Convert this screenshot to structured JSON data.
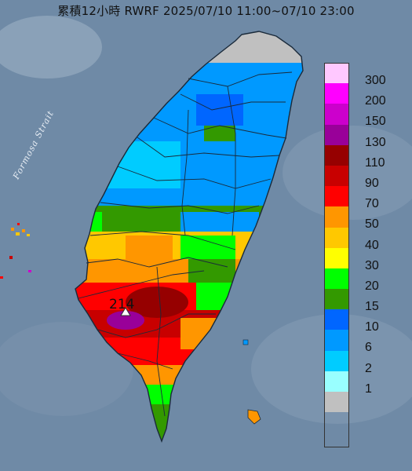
{
  "title": "累積12小時 RWRF 2025/07/10 11:00~07/10 23:00",
  "strait_label": "Formosa Strait",
  "max_value_label": "214",
  "legend": [
    {
      "label": "300",
      "color": "#ffc8ff"
    },
    {
      "label": "200",
      "color": "#ff00ff"
    },
    {
      "label": "150",
      "color": "#cc00cc"
    },
    {
      "label": "130",
      "color": "#990099"
    },
    {
      "label": "110",
      "color": "#960000"
    },
    {
      "label": "90",
      "color": "#c80000"
    },
    {
      "label": "70",
      "color": "#ff0000"
    },
    {
      "label": "50",
      "color": "#ff9600"
    },
    {
      "label": "40",
      "color": "#ffc800"
    },
    {
      "label": "30",
      "color": "#ffff00"
    },
    {
      "label": "20",
      "color": "#00ff00"
    },
    {
      "label": "15",
      "color": "#339900"
    },
    {
      "label": "10",
      "color": "#0066ff"
    },
    {
      "label": "6",
      "color": "#0099ff"
    },
    {
      "label": "2",
      "color": "#00ccff"
    },
    {
      "label": "1",
      "color": "#99ffff"
    },
    {
      "label": "",
      "color": "#c0c0c0"
    }
  ],
  "colors": {
    "sea": "#6f8aa6",
    "land_none": "#c0c0c0",
    "county_border": "#1a2a3a"
  }
}
